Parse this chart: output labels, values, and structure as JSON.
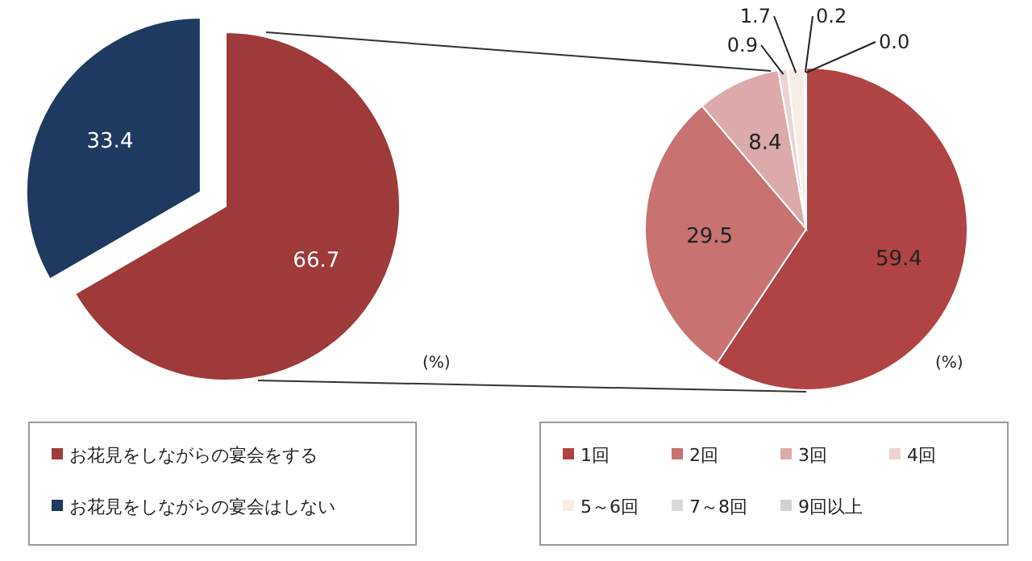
{
  "chart_data": [
    {
      "type": "pie",
      "categories": [
        "お花見をしながらの宴会をする",
        "お花見をしながらの宴会はしない"
      ],
      "values": [
        66.7,
        33.4
      ],
      "colors": [
        "#9e3a3a",
        "#1f3a60"
      ],
      "data_labels": true,
      "legend": "bottom",
      "annotations": [
        "(%)"
      ]
    },
    {
      "type": "pie",
      "categories": [
        "1回",
        "2回",
        "3回",
        "4回",
        "5～6回",
        "7～8回",
        "9回以上"
      ],
      "values": [
        59.4,
        29.5,
        8.4,
        0.9,
        1.7,
        0.2,
        0.0
      ],
      "value_labels": [
        "59.4",
        "29.5",
        "8.4",
        "0.9",
        "1.7",
        "0.2",
        "0.0"
      ],
      "colors": [
        "#b04444",
        "#c87272",
        "#dcaaaa",
        "#ecd2d2",
        "#f8ede6",
        "#d9d9d9",
        "#d2d2d6"
      ],
      "data_labels": true,
      "legend": "bottom",
      "annotations": [
        "(%)"
      ]
    }
  ]
}
